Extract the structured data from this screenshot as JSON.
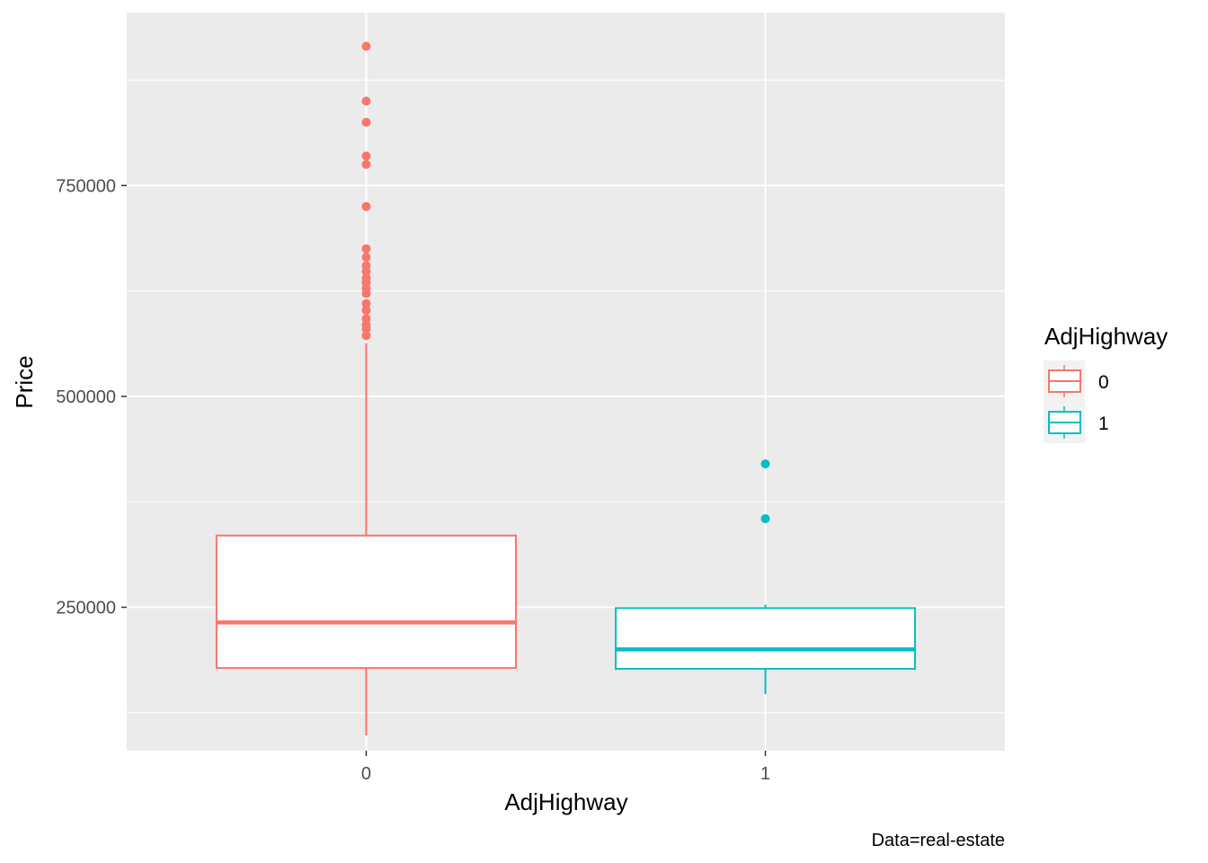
{
  "chart_data": {
    "type": "boxplot",
    "xlabel": "AdjHighway",
    "ylabel": "Price",
    "caption": "Data=real-estate",
    "categories": [
      "0",
      "1"
    ],
    "ylim": [
      80000,
      955000
    ],
    "y_ticks": [
      250000,
      500000,
      750000
    ],
    "y_tick_labels": [
      "250000",
      "500000",
      "750000"
    ],
    "grid": true,
    "legend": {
      "title": "AdjHighway",
      "position": "right",
      "entries": [
        {
          "label": "0",
          "color": "#F8766D"
        },
        {
          "label": "1",
          "color": "#00BFC4"
        }
      ]
    },
    "series": [
      {
        "category": "0",
        "color": "#F8766D",
        "whisker_low": 98000,
        "q1": 178000,
        "median": 232000,
        "q3": 335000,
        "whisker_high": 563000,
        "outliers": [
          915000,
          850000,
          825000,
          785000,
          775000,
          725000,
          675000,
          665000,
          655000,
          648000,
          640000,
          635000,
          628000,
          622000,
          610000,
          602000,
          592000,
          585000,
          580000,
          572000
        ]
      },
      {
        "category": "1",
        "color": "#00BFC4",
        "whisker_low": 147000,
        "q1": 177000,
        "median": 200000,
        "q3": 249000,
        "whisker_high": 253000,
        "outliers": [
          420000,
          355000
        ]
      }
    ]
  }
}
